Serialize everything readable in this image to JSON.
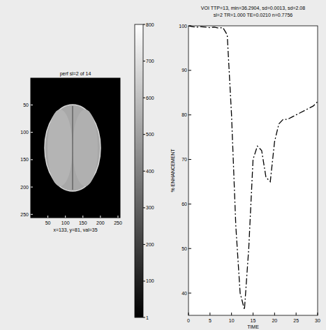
{
  "chart_data": [
    {
      "type": "image",
      "title": "perf sl=2 of 14",
      "xlabel": "x=133, y=81, val=35",
      "xlim": [
        1,
        256
      ],
      "ylim": [
        1,
        256
      ],
      "xticks": [
        50,
        100,
        150,
        200,
        250
      ],
      "yticks": [
        50,
        100,
        150,
        200,
        250
      ],
      "colorbar": {
        "range": [
          1,
          800
        ],
        "ticks": [
          1,
          100,
          200,
          300,
          400,
          500,
          600,
          700,
          800
        ]
      }
    },
    {
      "type": "line",
      "title": "VOI TTP=13, min=36.2904, sd=0.0013, sd=2.08",
      "subtitle": "sl=2 TR=1.000 TE=0.0210 n=0.7756",
      "x_label": "TIME",
      "y_label": "% ENHANCEMENT",
      "x": [
        0,
        1,
        2,
        3,
        4,
        5,
        6,
        7,
        8,
        9,
        10,
        11,
        12,
        13,
        14,
        15,
        16,
        17,
        18,
        19,
        20,
        21,
        22,
        23,
        24,
        25,
        26,
        27,
        28,
        29,
        30
      ],
      "values": [
        100,
        99.8,
        99.7,
        99.8,
        99.7,
        99.6,
        99.7,
        99.5,
        99.6,
        98,
        80,
        55,
        40,
        36.3,
        50,
        70,
        73,
        72,
        66,
        65,
        74,
        78,
        79,
        79,
        79.5,
        80,
        80.5,
        81,
        81.5,
        82,
        83
      ],
      "xlim": [
        0,
        30
      ],
      "ylim": [
        35,
        100
      ],
      "xticks": [
        0,
        5,
        10,
        15,
        20,
        25,
        30
      ],
      "yticks": [
        40,
        50,
        60,
        70,
        80,
        90,
        100
      ],
      "color": "#000000",
      "line_style": "dashdot"
    }
  ]
}
